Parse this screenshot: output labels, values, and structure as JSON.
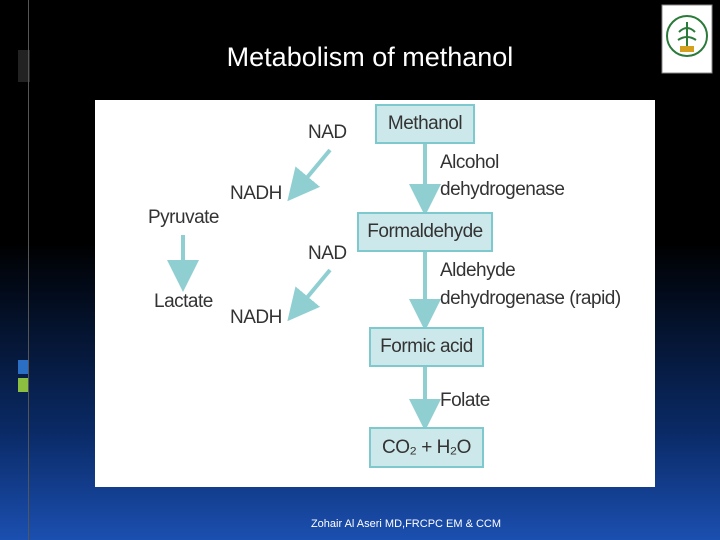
{
  "title": "Metabolism of methanol",
  "diagram": {
    "nodes": [
      {
        "label": "Methanol"
      },
      {
        "label": "Formaldehyde"
      },
      {
        "label": "Formic acid"
      },
      {
        "label": "CO₂ + H₂O"
      }
    ],
    "enzymes": [
      {
        "lines": [
          "Alcohol",
          "dehydrogenase"
        ]
      },
      {
        "lines": [
          "Aldehyde",
          "dehydrogenase (rapid)"
        ]
      },
      {
        "lines": [
          "Folate"
        ]
      }
    ],
    "cofactors": [
      {
        "in": "NAD",
        "out": "NADH"
      },
      {
        "in": "NAD",
        "out": "NADH"
      }
    ],
    "side_path": [
      "Pyruvate",
      "Lactate"
    ]
  },
  "footer": "Zohair Al Aseri MD,FRCPC EM & CCM"
}
